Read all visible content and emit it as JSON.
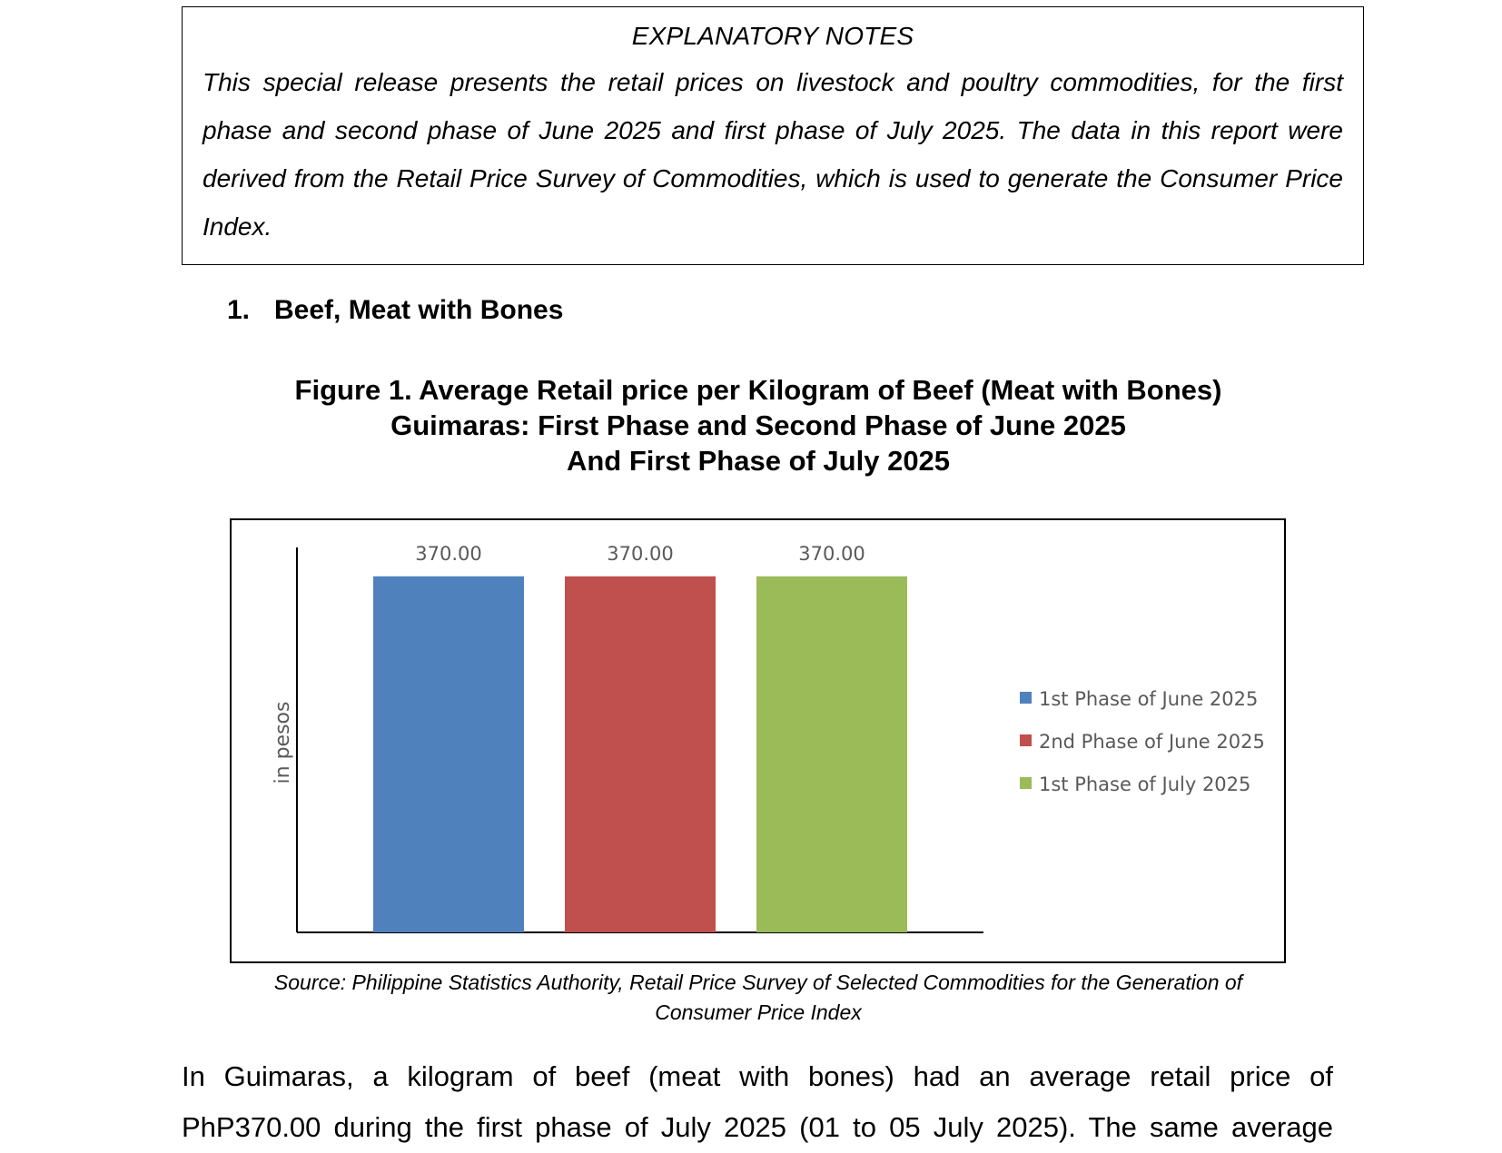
{
  "explanatory_notes": {
    "title": "EXPLANATORY NOTES",
    "body": "This special release presents the retail prices on livestock and poultry commodities, for the first phase and second phase of June 2025 and first phase of July 2025. The data in this report were derived from the Retail Price Survey of Commodities, which is used to generate the Consumer Price Index."
  },
  "section": {
    "number": "1.",
    "title": "Beef, Meat with Bones"
  },
  "figure": {
    "title_lines": [
      "Figure 1. Average Retail price per Kilogram of Beef (Meat with Bones)",
      "Guimaras: First Phase and Second Phase of June 2025",
      "And First Phase of July 2025"
    ],
    "source": "Source: Philippine Statistics Authority, Retail Price Survey of Selected Commodities for the Generation of Consumer Price Index"
  },
  "chart_data": {
    "type": "bar",
    "title": "Figure 1. Average Retail price per Kilogram of Beef (Meat with Bones) Guimaras: First Phase and Second Phase of June 2025 And First Phase of July 2025",
    "xlabel": "",
    "ylabel": "in pesos",
    "ylim": [
      0,
      400
    ],
    "grid": false,
    "legend_position": "right",
    "series": [
      {
        "name": "1st Phase of June 2025",
        "value": 370.0,
        "label": "370.00",
        "color": "#4F81BD"
      },
      {
        "name": "2nd Phase of June 2025",
        "value": 370.0,
        "label": "370.00",
        "color": "#C0504D"
      },
      {
        "name": "1st Phase of July 2025",
        "value": 370.0,
        "label": "370.00",
        "color": "#9BBB59"
      }
    ]
  },
  "body_text": {
    "line1": "In Guimaras, a kilogram of beef (meat with bones) had an average retail price of",
    "line2": "PhP370.00 during the first phase of July 2025 (01 to 05 July 2025). The same average"
  }
}
